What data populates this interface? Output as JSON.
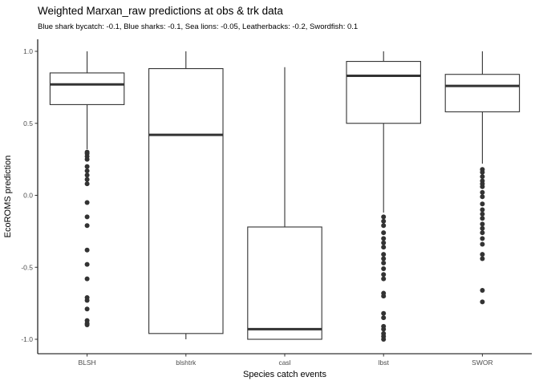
{
  "chart_data": {
    "type": "boxplot",
    "title": "Weighted Marxan_raw predictions at obs & trk data",
    "subtitle": "Blue shark bycatch: -0.1, Blue sharks: -0.1, Sea lions: -0.05, Leatherbacks: -0.2, Swordfish: 0.1",
    "xlabel": "Species catch events",
    "ylabel": "EcoROMS prediction",
    "ylim": [
      -1.05,
      1.0
    ],
    "yticks": [
      1.0,
      0.5,
      0.0,
      -0.5,
      -1.0
    ],
    "ytick_labels": [
      "1.0",
      "0.5",
      "0.0",
      "-0.5",
      "-1.0"
    ],
    "grid": false,
    "categories": [
      "BLSH",
      "blshtrk",
      "casl",
      "lbst",
      "SWOR"
    ],
    "boxes": [
      {
        "category": "BLSH",
        "whisker_low": 0.32,
        "q1": 0.63,
        "median": 0.77,
        "q3": 0.85,
        "whisker_high": 1.0,
        "outliers": [
          0.3,
          0.29,
          0.27,
          0.25,
          0.2,
          0.17,
          0.14,
          0.11,
          0.08,
          -0.05,
          -0.15,
          -0.21,
          -0.38,
          -0.48,
          -0.58,
          -0.71,
          -0.73,
          -0.79,
          -0.87,
          -0.89,
          -0.9
        ]
      },
      {
        "category": "blshtrk",
        "whisker_low": -1.0,
        "q1": -0.96,
        "median": 0.42,
        "q3": 0.88,
        "whisker_high": 1.0,
        "outliers": []
      },
      {
        "category": "casl",
        "whisker_low": -1.0,
        "q1": -1.0,
        "median": -0.93,
        "q3": -0.22,
        "whisker_high": 0.89,
        "outliers": []
      },
      {
        "category": "lbst",
        "whisker_low": -0.12,
        "q1": 0.5,
        "median": 0.83,
        "q3": 0.93,
        "whisker_high": 1.0,
        "outliers": [
          -0.15,
          -0.18,
          -0.21,
          -0.26,
          -0.3,
          -0.33,
          -0.36,
          -0.41,
          -0.44,
          -0.47,
          -0.51,
          -0.55,
          -0.58,
          -0.68,
          -0.7,
          -0.82,
          -0.85,
          -0.91,
          -0.93,
          -0.96,
          -0.98,
          -1.0
        ]
      },
      {
        "category": "SWOR",
        "whisker_low": 0.22,
        "q1": 0.58,
        "median": 0.76,
        "q3": 0.84,
        "whisker_high": 1.0,
        "outliers": [
          0.18,
          0.16,
          0.13,
          0.1,
          0.08,
          0.06,
          0.02,
          -0.01,
          -0.06,
          -0.1,
          -0.13,
          -0.16,
          -0.2,
          -0.23,
          -0.26,
          -0.3,
          -0.34,
          -0.41,
          -0.44,
          -0.66,
          -0.74
        ]
      }
    ]
  }
}
